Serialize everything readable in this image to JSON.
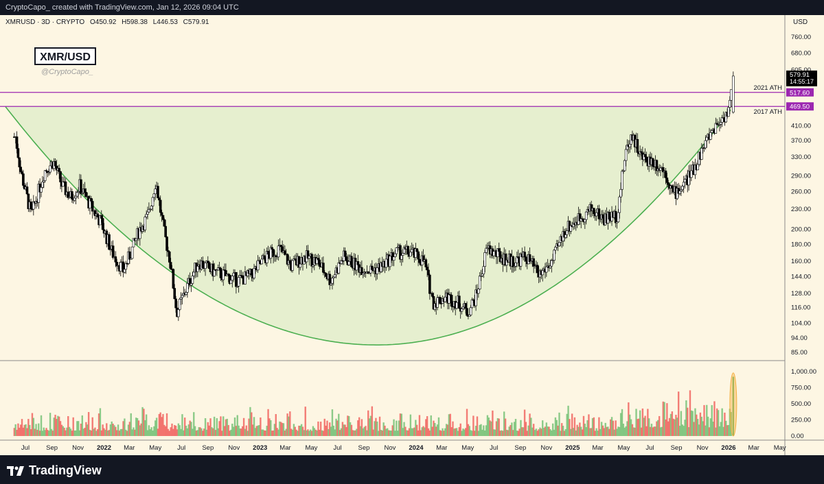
{
  "header": {
    "credit": "CryptoCapo_  created with TradingView.com, Jan 12, 2026 09:04 UTC"
  },
  "legend": {
    "symbol": "XMRUSD · 3D · CRYPTO",
    "open": "O450.92",
    "high": "H598.38",
    "low": "L446.53",
    "close": "C579.91"
  },
  "watermark": {
    "title": "XMR/USD",
    "handle": "@CryptoCapo_"
  },
  "currency": "USD",
  "footer": {
    "brand": "TradingView"
  },
  "colors": {
    "background": "#fdf6e3",
    "candle": "#000000",
    "cup_fill": "#e6efcf",
    "cup_line": "#4caf50",
    "resistance": "#9c27b0",
    "volume_up": "#66bb6a",
    "volume_down": "#ef5350",
    "volume_highlight": "#f5b041"
  },
  "chart_data": {
    "type": "candlestick",
    "title": "XMR/USD",
    "scale": "log",
    "ylim": [
      80,
      800
    ],
    "y_ticks": [
      "760.00",
      "680.00",
      "605.00",
      "410.00",
      "370.00",
      "330.00",
      "290.00",
      "260.00",
      "230.00",
      "200.00",
      "180.00",
      "160.00",
      "144.00",
      "128.00",
      "116.00",
      "104.00",
      "94.00",
      "85.00"
    ],
    "x_ticks": [
      "Jul",
      "Sep",
      "Nov",
      "2022",
      "Mar",
      "May",
      "Jul",
      "Sep",
      "Nov",
      "2023",
      "Mar",
      "May",
      "Jul",
      "Sep",
      "Nov",
      "2024",
      "Mar",
      "May",
      "Jul",
      "Sep",
      "Nov",
      "2025",
      "Mar",
      "May",
      "Jul",
      "Sep",
      "Nov",
      "2026",
      "Mar",
      "May"
    ],
    "x_range": [
      "2021-06",
      "2026-06"
    ],
    "price_path": [
      [
        "2021-06-08",
        380
      ],
      [
        "2021-06-20",
        300
      ],
      [
        "2021-07-15",
        220
      ],
      [
        "2021-08-15",
        300
      ],
      [
        "2021-09-05",
        320
      ],
      [
        "2021-09-25",
        270
      ],
      [
        "2021-10-15",
        250
      ],
      [
        "2021-11-05",
        270
      ],
      [
        "2021-12-05",
        230
      ],
      [
        "2021-12-25",
        210
      ],
      [
        "2022-01-20",
        170
      ],
      [
        "2022-02-15",
        150
      ],
      [
        "2022-03-05",
        170
      ],
      [
        "2022-03-25",
        200
      ],
      [
        "2022-04-15",
        220
      ],
      [
        "2022-05-02",
        280
      ],
      [
        "2022-05-20",
        200
      ],
      [
        "2022-06-05",
        160
      ],
      [
        "2022-06-20",
        112
      ],
      [
        "2022-07-10",
        130
      ],
      [
        "2022-08-10",
        160
      ],
      [
        "2022-09-10",
        150
      ],
      [
        "2022-10-10",
        145
      ],
      [
        "2022-11-10",
        140
      ],
      [
        "2022-12-10",
        145
      ],
      [
        "2023-01-15",
        165
      ],
      [
        "2023-02-15",
        175
      ],
      [
        "2023-03-15",
        155
      ],
      [
        "2023-04-15",
        165
      ],
      [
        "2023-05-15",
        160
      ],
      [
        "2023-06-15",
        140
      ],
      [
        "2023-07-15",
        165
      ],
      [
        "2023-08-15",
        155
      ],
      [
        "2023-09-15",
        150
      ],
      [
        "2023-10-15",
        155
      ],
      [
        "2023-11-15",
        170
      ],
      [
        "2023-12-20",
        170
      ],
      [
        "2024-01-20",
        160
      ],
      [
        "2024-02-10",
        120
      ],
      [
        "2024-03-10",
        125
      ],
      [
        "2024-04-10",
        120
      ],
      [
        "2024-04-30",
        112
      ],
      [
        "2024-05-20",
        125
      ],
      [
        "2024-06-15",
        175
      ],
      [
        "2024-07-15",
        165
      ],
      [
        "2024-08-15",
        160
      ],
      [
        "2024-09-15",
        165
      ],
      [
        "2024-10-15",
        145
      ],
      [
        "2024-11-15",
        160
      ],
      [
        "2024-12-15",
        200
      ],
      [
        "2025-01-15",
        215
      ],
      [
        "2025-02-15",
        230
      ],
      [
        "2025-03-15",
        215
      ],
      [
        "2025-04-15",
        220
      ],
      [
        "2025-05-05",
        340
      ],
      [
        "2025-05-20",
        390
      ],
      [
        "2025-06-10",
        330
      ],
      [
        "2025-07-10",
        320
      ],
      [
        "2025-08-05",
        300
      ],
      [
        "2025-08-25",
        255
      ],
      [
        "2025-09-15",
        270
      ],
      [
        "2025-10-10",
        300
      ],
      [
        "2025-11-01",
        350
      ],
      [
        "2025-11-25",
        400
      ],
      [
        "2025-12-15",
        430
      ],
      [
        "2026-01-02",
        455
      ],
      [
        "2026-01-12",
        579.91
      ]
    ],
    "last_candle": {
      "open": 450.92,
      "high": 598.38,
      "low": 446.53,
      "close": 579.91
    },
    "cup_curve": {
      "start": [
        "2021-05-15",
        469.5
      ],
      "bottom": [
        "2023-10-01",
        89.5
      ],
      "end": [
        "2026-01-12",
        469.5
      ]
    },
    "levels": [
      {
        "label": "2021 ATH",
        "value": 517.6,
        "tag": "517.60"
      },
      {
        "label": "2017 ATH",
        "value": 469.5,
        "tag": "469.50"
      }
    ],
    "price_tag": {
      "value": "579.91",
      "countdown": "14:55:17"
    },
    "volume": {
      "ylim": [
        0,
        1000
      ],
      "y_ticks": [
        "1,000.00",
        "750.00",
        "500.00",
        "250.00",
        "0.00"
      ],
      "highlight": "2026-01-12"
    }
  }
}
